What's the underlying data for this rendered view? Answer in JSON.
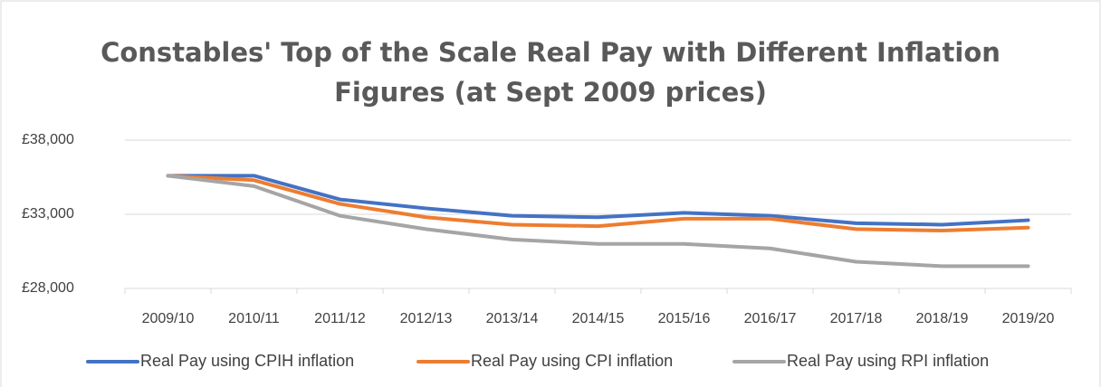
{
  "chart_data": {
    "type": "line",
    "title": "Constables' Top of the Scale Real Pay with Different Inflation Figures (at Sept 2009 prices)",
    "categories": [
      "2009/10",
      "2010/11",
      "2011/12",
      "2012/13",
      "2013/14",
      "2014/15",
      "2015/16",
      "2016/17",
      "2017/18",
      "2018/19",
      "2019/20"
    ],
    "series": [
      {
        "name": "Real Pay using CPIH inflation",
        "color": "#4472c4",
        "values": [
          35600,
          35600,
          34000,
          33400,
          32900,
          32800,
          33100,
          32900,
          32400,
          32300,
          32600
        ]
      },
      {
        "name": "Real Pay using CPI inflation",
        "color": "#ed7d31",
        "values": [
          35600,
          35300,
          33700,
          32800,
          32300,
          32200,
          32700,
          32700,
          32000,
          31900,
          32100
        ]
      },
      {
        "name": "Real Pay using RPI inflation",
        "color": "#a5a5a5",
        "values": [
          35600,
          34900,
          32900,
          32000,
          31300,
          31000,
          31000,
          30700,
          29800,
          29500,
          29500
        ]
      }
    ],
    "ylim": [
      28000,
      38000
    ],
    "yticks": [
      {
        "value": 28000,
        "label": "£28,000"
      },
      {
        "value": 33000,
        "label": "£33,000"
      },
      {
        "value": 38000,
        "label": "£38,000"
      }
    ],
    "grid": true,
    "legend": "bottom"
  }
}
